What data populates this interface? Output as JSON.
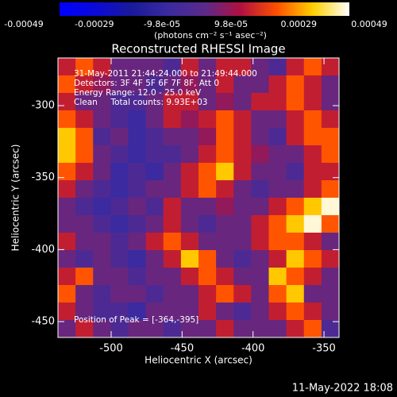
{
  "chart_data": {
    "type": "heatmap",
    "title": "Reconstructed RHESSI Image",
    "xlabel": "Heliocentric X (arcsec)",
    "ylabel": "Heliocentric Y (arcsec)",
    "xlim": [
      -537.5,
      -339.4
    ],
    "ylim": [
      -461,
      -266.9
    ],
    "xticks": [
      -500,
      -450,
      -400,
      -350
    ],
    "yticks": [
      -450,
      -400,
      -350,
      -300
    ],
    "colorbar_label": "(photons cm⁻² s⁻¹ asec⁻²)",
    "zlim": [
      -0.00049,
      0.00049
    ],
    "cticks": [
      -0.00049,
      -0.00029,
      {
        "value": -9.8e-05,
        "label": "-9.8e-05"
      },
      {
        "value": 9.8e-05,
        "label": "9.8e-05"
      },
      0.00029,
      0.00049
    ],
    "colormap": [
      "#0000ff",
      "#0a0ad8",
      "#1a1a9a",
      "#3a2aa0",
      "#5a2a8a",
      "#b01040",
      "#ff5000",
      "#ffd000",
      "#ffffff"
    ],
    "annotations": [
      "31-May-2011 21:44:24.000 to 21:49:44.000",
      "Detectors: 3F 4F 5F 6F 7F 8F, Att 0",
      "Energy Range: 12.0 - 25.0 keV",
      "Clean     Total counts: 9.93E+03"
    ],
    "peak_label": "Position of Peak = [-364,-395]",
    "timestamp": "11-May-2022 18:08",
    "z": [
      [
        0.00015,
        0.00025,
        0.00015,
        2e-05,
        2e-05,
        2e-05,
        -5e-05,
        0.00015,
        2e-05,
        0.00015,
        0.00015,
        2e-05,
        -5e-05,
        0.00015,
        0.00025,
        0.00015
      ],
      [
        0.00025,
        0.00015,
        8e-05,
        2e-05,
        2e-05,
        -5e-05,
        2e-05,
        8e-05,
        2e-05,
        0.00015,
        2e-05,
        2e-05,
        0.00015,
        0.00025,
        0.00015,
        2e-05
      ],
      [
        0.00015,
        2e-05,
        2e-05,
        -5e-05,
        -5e-05,
        2e-05,
        0.00015,
        0.00015,
        2e-05,
        8e-05,
        2e-05,
        0.00015,
        0.00015,
        0.00025,
        0.00015,
        2e-05
      ],
      [
        0.00025,
        0.00015,
        2e-05,
        -5e-05,
        -0.00012,
        2e-05,
        0.00015,
        8e-05,
        0.00015,
        0.00025,
        0.00015,
        2e-05,
        2e-05,
        0.00015,
        0.00025,
        0.00015
      ],
      [
        0.00036,
        0.00025,
        -5e-05,
        2e-05,
        -0.00012,
        -5e-05,
        2e-05,
        2e-05,
        8e-05,
        0.00025,
        0.00015,
        2e-05,
        -5e-05,
        0.00015,
        0.00025,
        0.00025
      ],
      [
        0.00036,
        0.00025,
        2e-05,
        -5e-05,
        -0.00012,
        -5e-05,
        -5e-05,
        2e-05,
        0.00015,
        0.00025,
        0.00015,
        8e-05,
        2e-05,
        2e-05,
        0.00015,
        0.00025
      ],
      [
        0.00025,
        0.00015,
        2e-05,
        -0.00012,
        -5e-05,
        -0.00012,
        2e-05,
        0.00015,
        0.00025,
        0.00036,
        0.00015,
        2e-05,
        2e-05,
        -5e-05,
        0.00015,
        0.00015
      ],
      [
        0.00015,
        2e-05,
        -5e-05,
        -0.00012,
        -5e-05,
        2e-05,
        2e-05,
        0.00015,
        0.00025,
        0.00015,
        2e-05,
        -5e-05,
        2e-05,
        2e-05,
        0.00015,
        0.00025
      ],
      [
        2e-05,
        -5e-05,
        -0.00012,
        -5e-05,
        2e-05,
        -5e-05,
        0.00015,
        2e-05,
        2e-05,
        8e-05,
        2e-05,
        2e-05,
        0.00015,
        0.00025,
        0.00036,
        0.00047
      ],
      [
        2e-05,
        2e-05,
        -5e-05,
        -0.00012,
        -5e-05,
        2e-05,
        0.00015,
        2e-05,
        -5e-05,
        2e-05,
        2e-05,
        0.00015,
        0.00025,
        0.00036,
        0.00047,
        0.00025
      ],
      [
        0.00015,
        2e-05,
        2e-05,
        -5e-05,
        2e-05,
        0.00015,
        0.00025,
        0.00015,
        2e-05,
        2e-05,
        2e-05,
        0.00015,
        0.00025,
        0.00025,
        0.00015,
        2e-05
      ],
      [
        2e-05,
        -5e-05,
        2e-05,
        -5e-05,
        -0.00012,
        2e-05,
        0.00015,
        0.00036,
        0.00025,
        2e-05,
        -5e-05,
        2e-05,
        0.00015,
        0.00036,
        0.00025,
        0.00015
      ],
      [
        0.00015,
        0.00025,
        2e-05,
        2e-05,
        -5e-05,
        2e-05,
        2e-05,
        0.00015,
        0.00025,
        0.00015,
        2e-05,
        2e-05,
        0.00036,
        0.00025,
        0.00015,
        2e-05
      ],
      [
        0.00025,
        2e-05,
        -5e-05,
        2e-05,
        2e-05,
        -5e-05,
        2e-05,
        2e-05,
        0.00015,
        0.00025,
        0.00015,
        2e-05,
        0.00025,
        0.00036,
        2e-05,
        2e-05
      ],
      [
        0.00015,
        2e-05,
        -5e-05,
        -5e-05,
        -0.00012,
        2e-05,
        2e-05,
        2e-05,
        0.00015,
        2e-05,
        -5e-05,
        2e-05,
        0.00015,
        0.00025,
        0.00015,
        2e-05
      ],
      [
        2e-05,
        0.00015,
        2e-05,
        -5e-05,
        2e-05,
        2e-05,
        -5e-05,
        2e-05,
        2e-05,
        0.00015,
        2e-05,
        2e-05,
        2e-05,
        0.00015,
        0.00025,
        -5e-05
      ]
    ]
  }
}
